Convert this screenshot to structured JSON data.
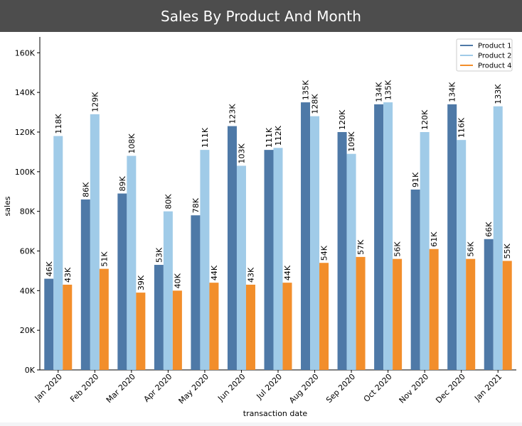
{
  "chart_data": {
    "type": "bar",
    "title": "Sales By Product And Month",
    "xlabel": "transaction date",
    "ylabel": "sales",
    "ylim": [
      0,
      168000
    ],
    "yticks": [
      0,
      20000,
      40000,
      60000,
      80000,
      100000,
      120000,
      140000,
      160000
    ],
    "ytick_labels": [
      "0K",
      "20K",
      "40K",
      "60K",
      "80K",
      "100K",
      "120K",
      "140K",
      "160K"
    ],
    "categories": [
      "Jan 2020",
      "Feb 2020",
      "Mar 2020",
      "Apr 2020",
      "May 2020",
      "Jun 2020",
      "Jul 2020",
      "Aug 2020",
      "Sep 2020",
      "Oct 2020",
      "Nov 2020",
      "Dec 2020",
      "Jan 2021"
    ],
    "legend_position": "top-right",
    "series": [
      {
        "name": "Product 1",
        "color": "#4e79a7",
        "values": [
          46000,
          86000,
          89000,
          53000,
          78000,
          123000,
          111000,
          135000,
          120000,
          134000,
          91000,
          134000,
          66000
        ],
        "labels": [
          "46K",
          "86K",
          "89K",
          "53K",
          "78K",
          "123K",
          "111K",
          "135K",
          "120K",
          "134K",
          "91K",
          "134K",
          "66K"
        ]
      },
      {
        "name": "Product 2",
        "color": "#a0cbe8",
        "values": [
          118000,
          129000,
          108000,
          80000,
          111000,
          103000,
          112000,
          128000,
          109000,
          135000,
          120000,
          116000,
          133000
        ],
        "labels": [
          "118K",
          "129K",
          "108K",
          "80K",
          "111K",
          "103K",
          "112K",
          "128K",
          "109K",
          "135K",
          "120K",
          "116K",
          "133K"
        ]
      },
      {
        "name": "Product 4",
        "color": "#f28e2b",
        "values": [
          43000,
          51000,
          39000,
          40000,
          44000,
          43000,
          44000,
          54000,
          57000,
          56000,
          61000,
          56000,
          55000
        ],
        "labels": [
          "43K",
          "51K",
          "39K",
          "40K",
          "44K",
          "43K",
          "44K",
          "54K",
          "57K",
          "56K",
          "61K",
          "56K",
          "55K"
        ]
      }
    ]
  }
}
